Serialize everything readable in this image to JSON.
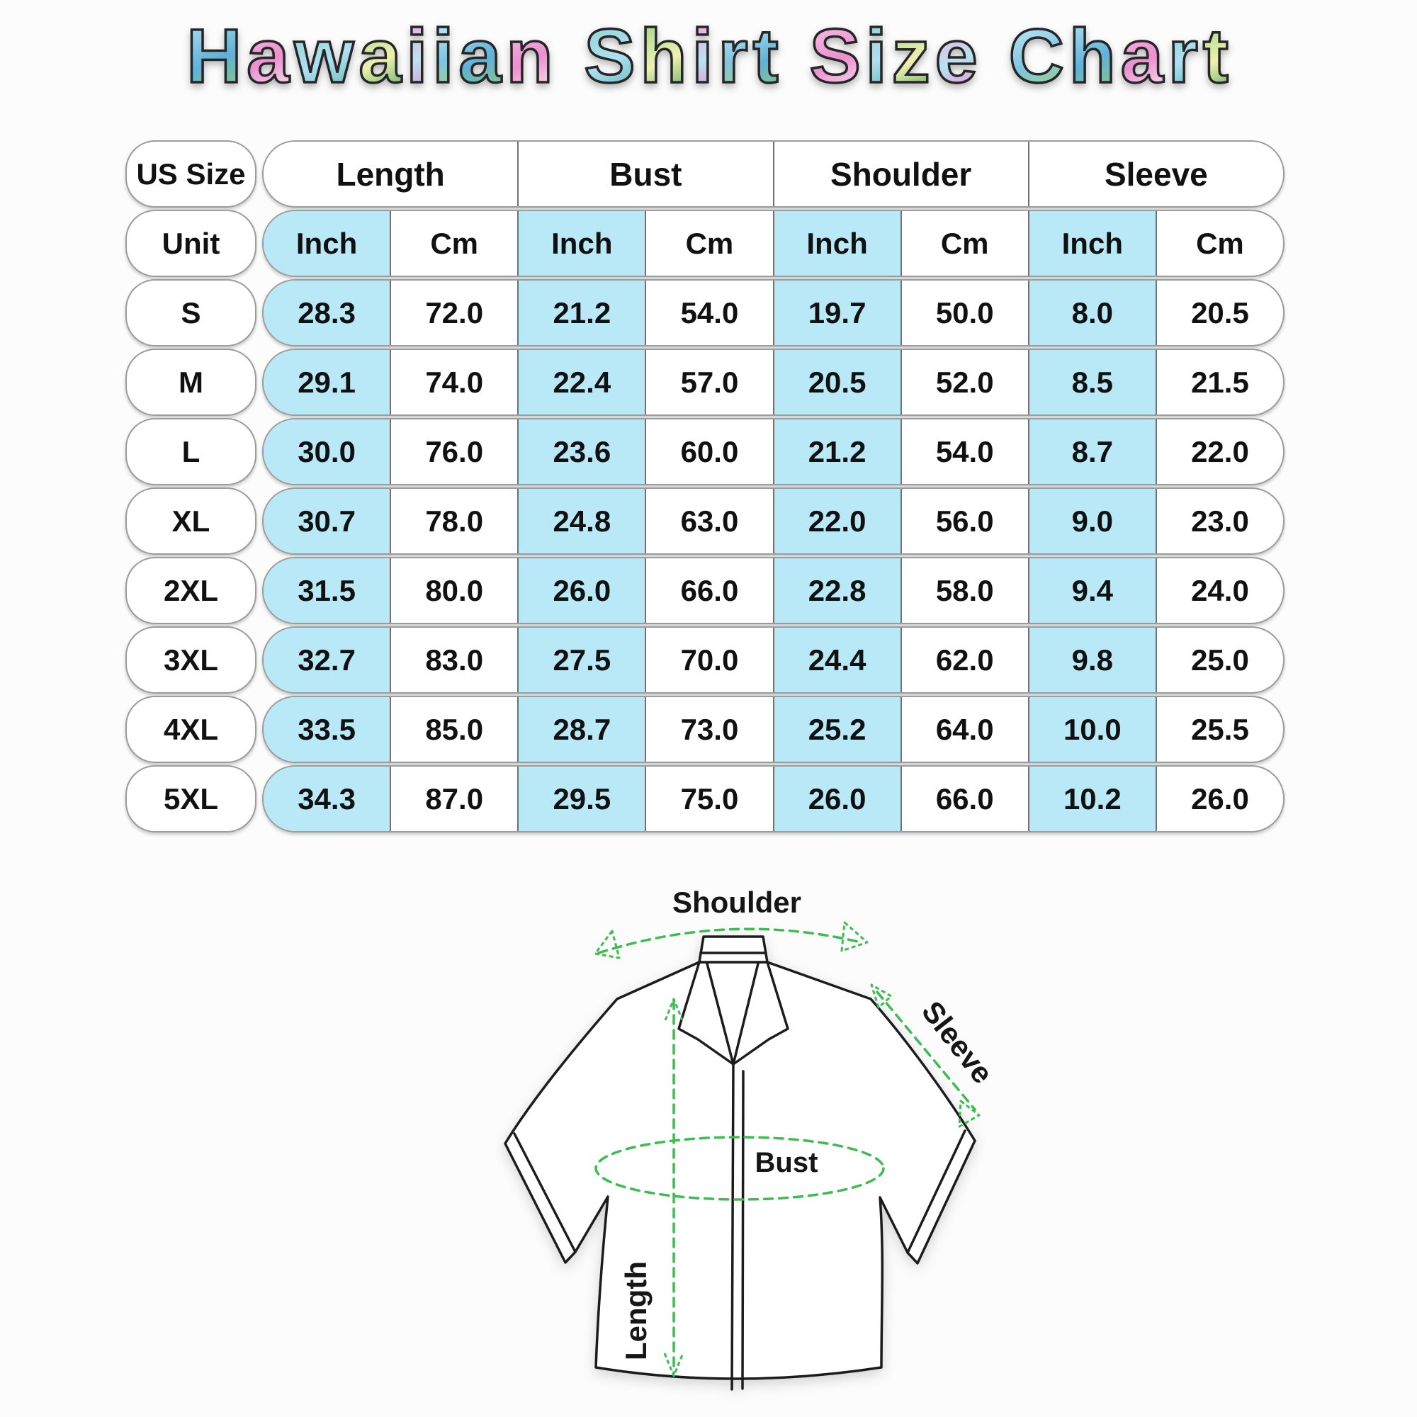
{
  "title": {
    "text": "Hawaiian Shirt Size Chart",
    "palette": [
      [
        "#aadcf0",
        "#5fb1d8",
        "#8cc97a"
      ],
      [
        "#f6bde4",
        "#ec8fd0",
        "#f8e4ef"
      ],
      [
        "#8fd7d2",
        "#aee0f2",
        "#5fb9b2"
      ],
      [
        "#a5d98e",
        "#eef0b0",
        "#5fae62"
      ],
      [
        "#f2aadc",
        "#b8e2f1",
        "#e98fce"
      ],
      [
        "#bfe9f6",
        "#7fc4e0",
        "#9fd47f"
      ]
    ]
  },
  "table": {
    "corner_label": "US Size",
    "unit_label": "Unit",
    "groups": [
      "Length",
      "Bust",
      "Shoulder",
      "Sleeve"
    ],
    "unit_columns": [
      "Inch",
      "Cm"
    ],
    "rows": [
      {
        "size": "S",
        "values": [
          "28.3",
          "72.0",
          "21.2",
          "54.0",
          "19.7",
          "50.0",
          "8.0",
          "20.5"
        ]
      },
      {
        "size": "M",
        "values": [
          "29.1",
          "74.0",
          "22.4",
          "57.0",
          "20.5",
          "52.0",
          "8.5",
          "21.5"
        ]
      },
      {
        "size": "L",
        "values": [
          "30.0",
          "76.0",
          "23.6",
          "60.0",
          "21.2",
          "54.0",
          "8.7",
          "22.0"
        ]
      },
      {
        "size": "XL",
        "values": [
          "30.7",
          "78.0",
          "24.8",
          "63.0",
          "22.0",
          "56.0",
          "9.0",
          "23.0"
        ]
      },
      {
        "size": "2XL",
        "values": [
          "31.5",
          "80.0",
          "26.0",
          "66.0",
          "22.8",
          "58.0",
          "9.4",
          "24.0"
        ]
      },
      {
        "size": "3XL",
        "values": [
          "32.7",
          "83.0",
          "27.5",
          "70.0",
          "24.4",
          "62.0",
          "9.8",
          "25.0"
        ]
      },
      {
        "size": "4XL",
        "values": [
          "33.5",
          "85.0",
          "28.7",
          "73.0",
          "25.2",
          "64.0",
          "10.0",
          "25.5"
        ]
      },
      {
        "size": "5XL",
        "values": [
          "34.3",
          "87.0",
          "29.5",
          "75.0",
          "26.0",
          "66.0",
          "10.2",
          "26.0"
        ]
      }
    ],
    "colors": {
      "inch_column_bg": "#b9e8f7",
      "divider": "#707070",
      "capsule_border": "#9c9c9c"
    }
  },
  "diagram": {
    "labels": {
      "shoulder": "Shoulder",
      "sleeve": "Sleeve",
      "bust": "Bust",
      "length": "Length"
    },
    "accent_color": "#3cbd4f"
  },
  "chart_data": {
    "type": "table",
    "title": "Hawaiian Shirt Size Chart",
    "columns": [
      "US Size",
      "Length Inch",
      "Length Cm",
      "Bust Inch",
      "Bust Cm",
      "Shoulder Inch",
      "Shoulder Cm",
      "Sleeve Inch",
      "Sleeve Cm"
    ],
    "rows": [
      [
        "S",
        28.3,
        72.0,
        21.2,
        54.0,
        19.7,
        50.0,
        8.0,
        20.5
      ],
      [
        "M",
        29.1,
        74.0,
        22.4,
        57.0,
        20.5,
        52.0,
        8.5,
        21.5
      ],
      [
        "L",
        30.0,
        76.0,
        23.6,
        60.0,
        21.2,
        54.0,
        8.7,
        22.0
      ],
      [
        "XL",
        30.7,
        78.0,
        24.8,
        63.0,
        22.0,
        56.0,
        9.0,
        23.0
      ],
      [
        "2XL",
        31.5,
        80.0,
        26.0,
        66.0,
        22.8,
        58.0,
        9.4,
        24.0
      ],
      [
        "3XL",
        32.7,
        83.0,
        27.5,
        70.0,
        24.4,
        62.0,
        9.8,
        25.0
      ],
      [
        "4XL",
        33.5,
        85.0,
        28.7,
        73.0,
        25.2,
        64.0,
        10.0,
        25.5
      ],
      [
        "5XL",
        34.3,
        87.0,
        29.5,
        75.0,
        26.0,
        66.0,
        10.2,
        26.0
      ]
    ]
  }
}
